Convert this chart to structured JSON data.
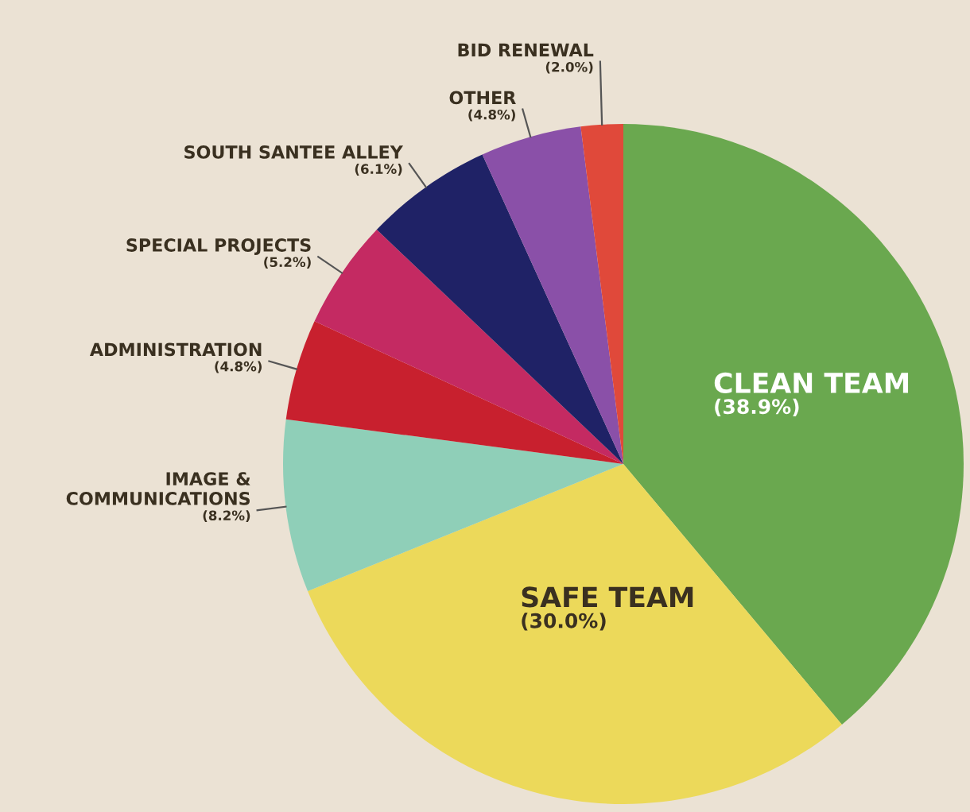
{
  "chart_data": {
    "type": "pie",
    "categories": [
      "CLEAN TEAM",
      "SAFE TEAM",
      "IMAGE &\nCOMMUNICATIONS",
      "ADMINISTRATION",
      "SPECIAL PROJECTS",
      "SOUTH SANTEE ALLEY",
      "OTHER",
      "BID RENEWAL"
    ],
    "values": [
      38.9,
      30.0,
      8.2,
      4.8,
      5.2,
      6.1,
      4.8,
      2.0
    ],
    "value_labels": [
      "(38.9%)",
      "(30.0%)",
      "(8.2%)",
      "(4.8%)",
      "(5.2%)",
      "(6.1%)",
      "(4.8%)",
      "(2.0%)"
    ],
    "colors": [
      "#6aa84f",
      "#ecd95a",
      "#8fcfb8",
      "#c8202e",
      "#c42a62",
      "#1f2266",
      "#8a50a8",
      "#e0493a"
    ]
  }
}
